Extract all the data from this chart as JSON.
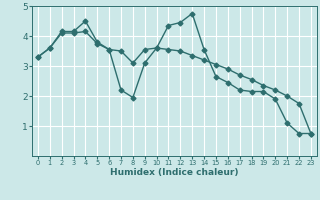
{
  "line1_x": [
    0,
    1,
    2,
    3,
    4,
    5,
    6,
    7,
    8,
    9,
    10,
    11,
    12,
    13,
    14,
    15,
    16,
    17,
    18,
    19,
    20,
    21,
    22,
    23
  ],
  "line1_y": [
    3.3,
    3.6,
    4.15,
    4.15,
    4.5,
    3.8,
    3.55,
    2.2,
    1.95,
    3.1,
    3.6,
    4.35,
    4.45,
    4.75,
    3.55,
    2.65,
    2.45,
    2.2,
    2.15,
    2.15,
    1.9,
    1.1,
    0.75,
    0.75
  ],
  "line2_x": [
    0,
    1,
    2,
    3,
    4,
    5,
    6,
    7,
    8,
    9,
    10,
    11,
    12,
    13,
    14,
    15,
    16,
    17,
    18,
    19,
    20,
    21,
    22,
    23
  ],
  "line2_y": [
    3.3,
    3.6,
    4.1,
    4.1,
    4.15,
    3.75,
    3.55,
    3.5,
    3.1,
    3.55,
    3.6,
    3.55,
    3.5,
    3.35,
    3.2,
    3.05,
    2.9,
    2.7,
    2.55,
    2.35,
    2.2,
    2.0,
    1.75,
    0.75
  ],
  "line_color": "#2e6e6e",
  "bg_color": "#cce8e8",
  "grid_color": "#ffffff",
  "xlabel": "Humidex (Indice chaleur)",
  "xlim": [
    -0.5,
    23.5
  ],
  "ylim": [
    0,
    5
  ],
  "yticks": [
    1,
    2,
    3,
    4,
    5
  ],
  "xticks": [
    0,
    1,
    2,
    3,
    4,
    5,
    6,
    7,
    8,
    9,
    10,
    11,
    12,
    13,
    14,
    15,
    16,
    17,
    18,
    19,
    20,
    21,
    22,
    23
  ],
  "marker": "D",
  "markersize": 2.5,
  "linewidth": 1.0,
  "xlabel_fontsize": 6.5,
  "xtick_fontsize": 4.8,
  "ytick_fontsize": 6.5
}
